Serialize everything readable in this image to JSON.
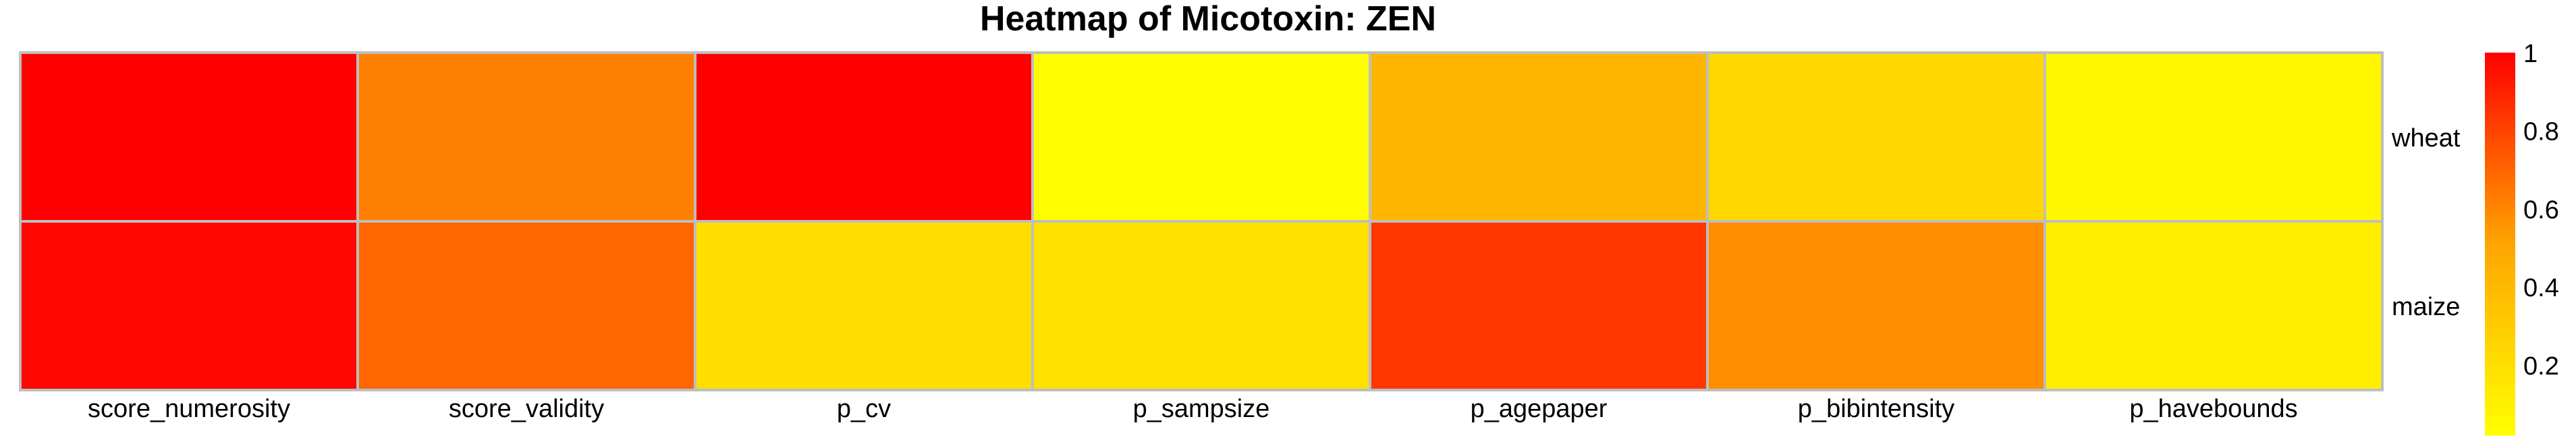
{
  "chart_data": {
    "type": "heatmap",
    "title": "Heatmap  of  Micotoxin: ZEN",
    "xlabel": "",
    "ylabel": "",
    "columns": [
      "score_numerosity",
      "score_validity",
      "p_cv",
      "p_sampsize",
      "p_agepaper",
      "p_bibintensity",
      "p_havebounds"
    ],
    "rows": [
      "wheat",
      "maize"
    ],
    "values": [
      [
        1.0,
        0.62,
        1.0,
        0.03,
        0.42,
        0.23,
        0.07
      ],
      [
        0.98,
        0.7,
        0.2,
        0.18,
        0.84,
        0.58,
        0.12
      ]
    ],
    "colorbar": {
      "min": 0.02,
      "max": 1.0,
      "ticks": [
        1,
        0.8,
        0.6,
        0.4,
        0.2
      ],
      "tick_labels": [
        "1",
        "0.8",
        "0.6",
        "0.4",
        "0.2"
      ],
      "low_color": "#FFFF00",
      "mid_color": "#FFA500",
      "high_color": "#FF0000"
    },
    "grid_color": "#BEBEBE",
    "legend_position": "right"
  }
}
